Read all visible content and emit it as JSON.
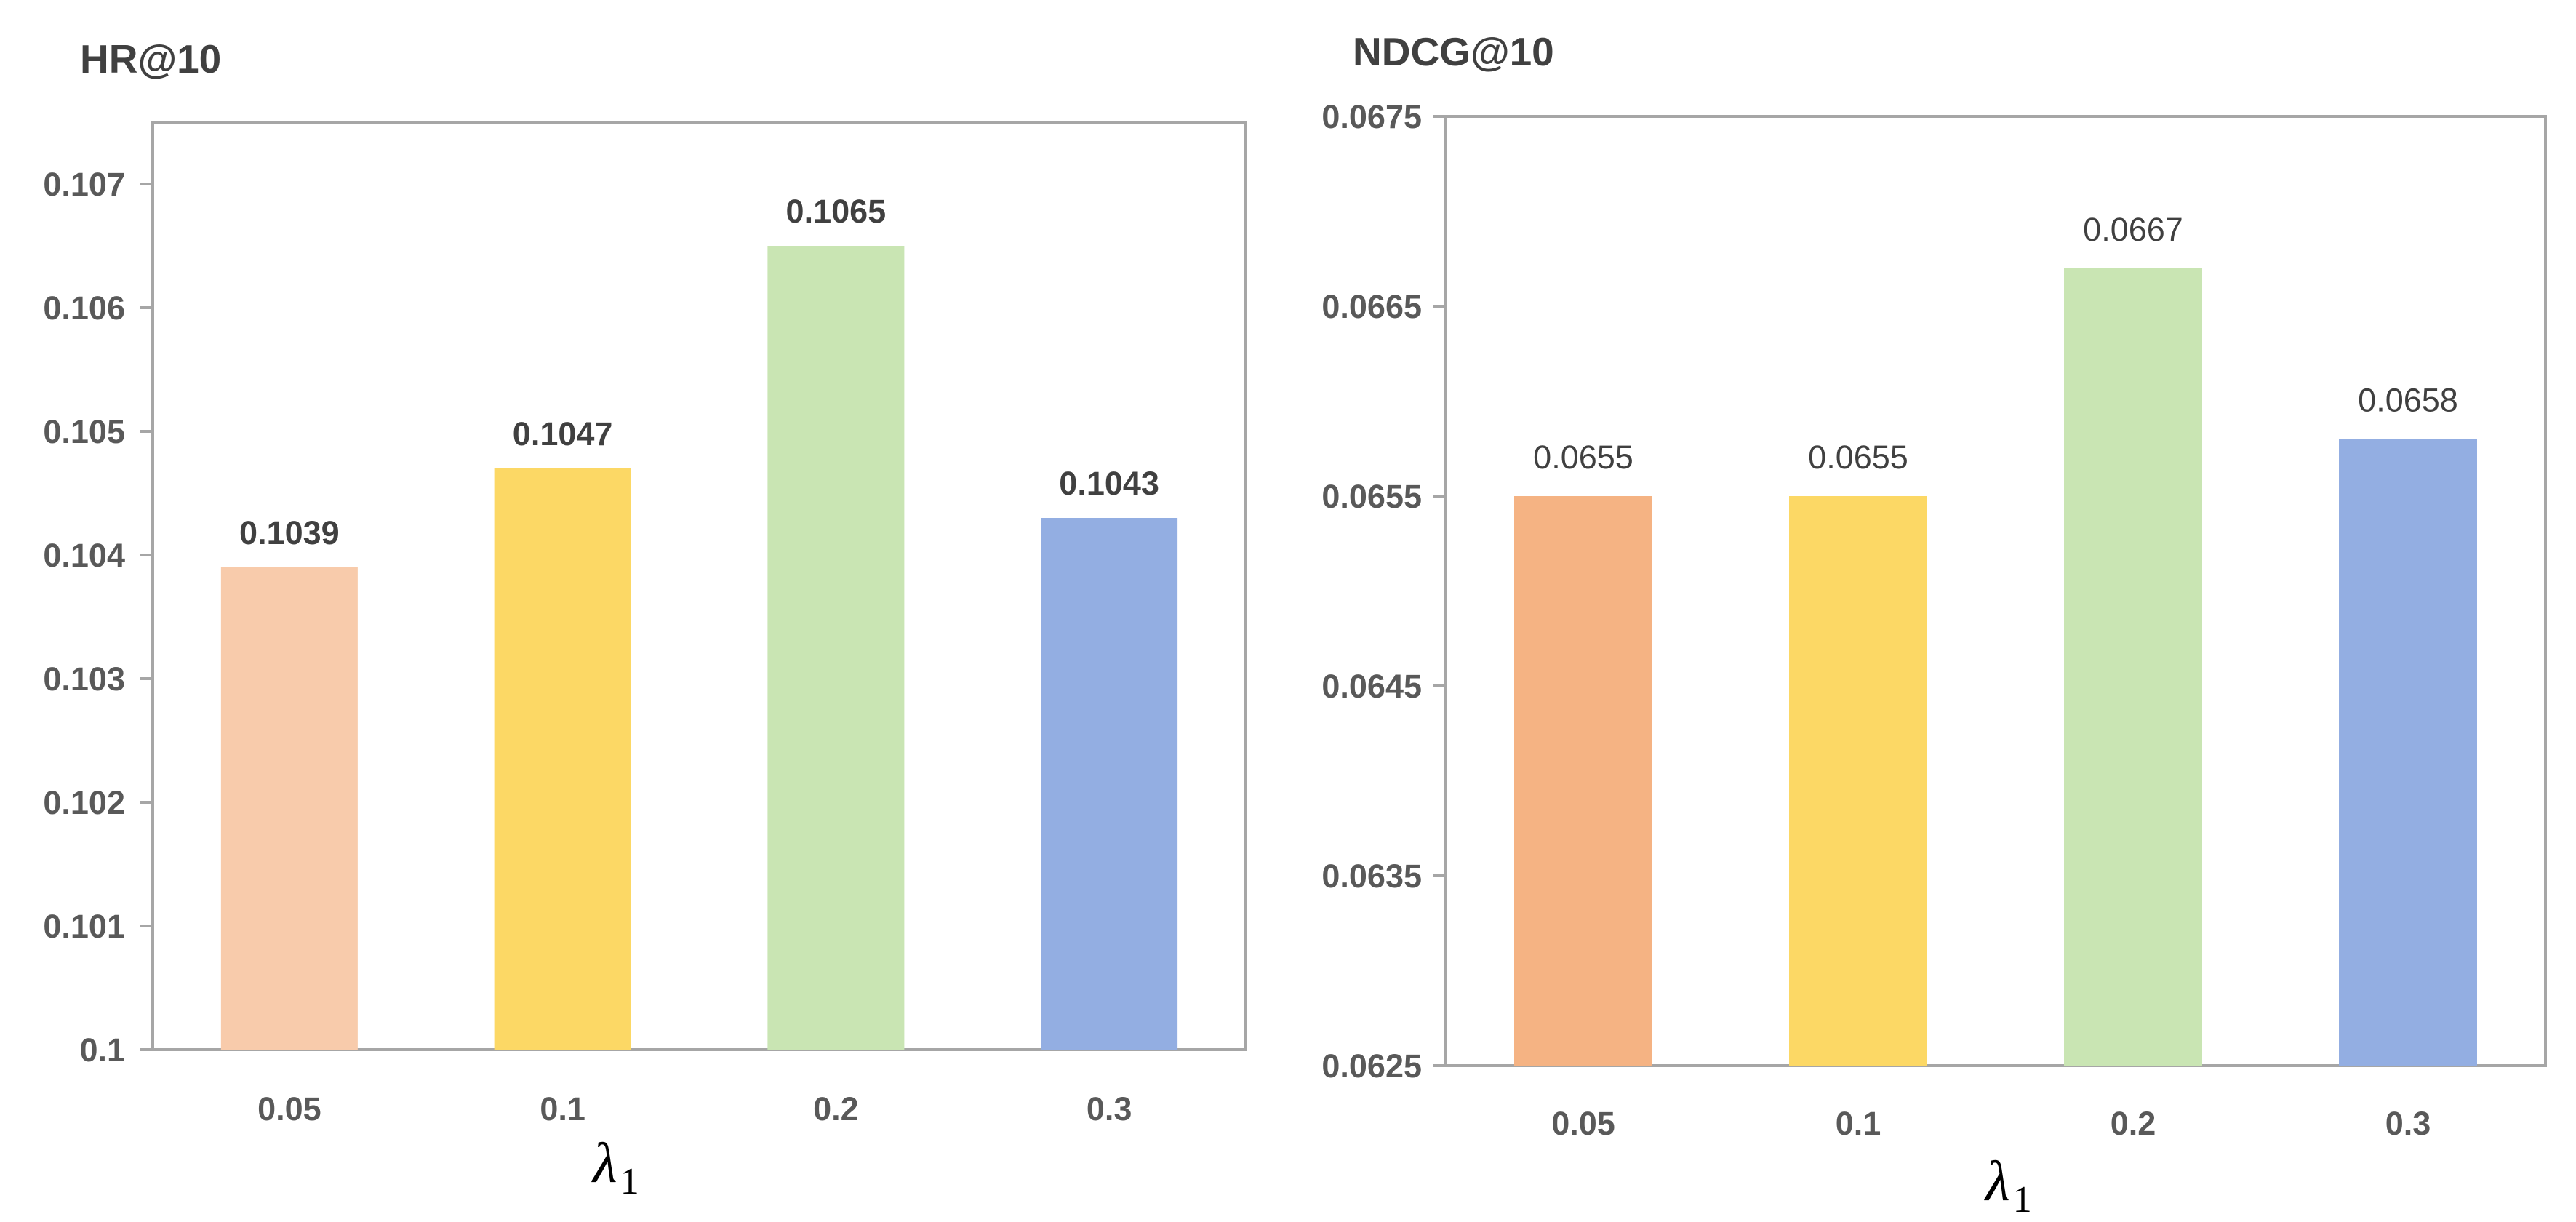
{
  "chart_data": [
    {
      "type": "bar",
      "title": "HR@10",
      "xlabel": "λ",
      "xlabel_subscript": "1",
      "categories": [
        "0.05",
        "0.1",
        "0.2",
        "0.3"
      ],
      "values": [
        0.1039,
        0.1047,
        0.1065,
        0.1043
      ],
      "value_labels": [
        "0.1039",
        "0.1047",
        "0.1065",
        "0.1043"
      ],
      "ylim": [
        0.1,
        0.1075
      ],
      "yticks": [
        0.1,
        0.101,
        0.102,
        0.103,
        0.104,
        0.105,
        0.106,
        0.107
      ],
      "ytick_labels": [
        "0.1",
        "0.101",
        "0.102",
        "0.103",
        "0.104",
        "0.105",
        "0.106",
        "0.107"
      ],
      "colors": [
        "#f8cbab",
        "#fcd865",
        "#c9e5b3",
        "#93aee2"
      ],
      "grid": false,
      "legend": "none"
    },
    {
      "type": "bar",
      "title": "NDCG@10",
      "xlabel": "λ",
      "xlabel_subscript": "1",
      "categories": [
        "0.05",
        "0.1",
        "0.2",
        "0.3"
      ],
      "values": [
        0.0655,
        0.0655,
        0.0667,
        0.0658
      ],
      "value_labels": [
        "0.0655",
        "0.0655",
        "0.0667",
        "0.0658"
      ],
      "ylim": [
        0.0625,
        0.0675
      ],
      "yticks": [
        0.0625,
        0.0635,
        0.0645,
        0.0655,
        0.0665,
        0.0675
      ],
      "ytick_labels": [
        "0.0625",
        "0.0635",
        "0.0645",
        "0.0655",
        "0.0665",
        "0.0675"
      ],
      "colors": [
        "#f5b383",
        "#fcd865",
        "#c9e5b3",
        "#93aee2"
      ],
      "grid": false,
      "legend": "none"
    }
  ]
}
